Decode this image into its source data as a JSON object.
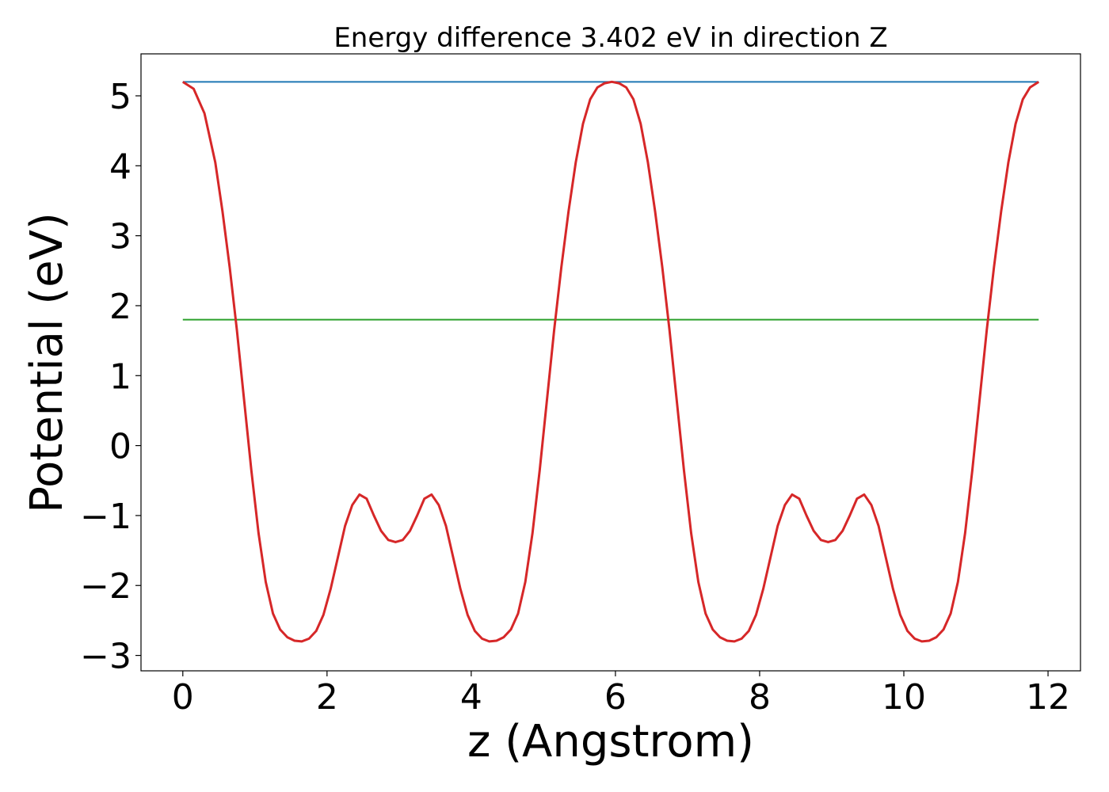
{
  "chart_data": {
    "type": "line",
    "title": "Energy difference 3.402 eV in direction Z",
    "xlabel": "z (Angstrom)",
    "ylabel": "Potential (eV)",
    "xlim": [
      -0.58,
      12.45
    ],
    "ylim": [
      -3.22,
      5.6
    ],
    "xticks": [
      0,
      2,
      4,
      6,
      8,
      10,
      12
    ],
    "yticks": [
      -3,
      -2,
      -1,
      0,
      1,
      2,
      3,
      4,
      5
    ],
    "xtick_labels": [
      "0",
      "2",
      "4",
      "6",
      "8",
      "10",
      "12"
    ],
    "ytick_labels": [
      "−3",
      "−2",
      "−1",
      "0",
      "1",
      "2",
      "3",
      "4",
      "5"
    ],
    "grid": false,
    "legend": "none",
    "series": [
      {
        "color": "#d62728",
        "x": [
          0.0,
          0.15,
          0.3,
          0.45,
          0.55,
          0.65,
          0.75,
          0.85,
          0.95,
          1.05,
          1.15,
          1.25,
          1.35,
          1.45,
          1.55,
          1.65,
          1.75,
          1.85,
          1.95,
          2.05,
          2.15,
          2.25,
          2.35,
          2.45,
          2.55,
          2.65,
          2.75,
          2.85,
          2.95,
          3.05,
          3.15,
          3.25,
          3.35,
          3.45,
          3.55,
          3.65,
          3.75,
          3.85,
          3.95,
          4.05,
          4.15,
          4.25,
          4.35,
          4.45,
          4.55,
          4.65,
          4.75,
          4.85,
          4.95,
          5.05,
          5.15,
          5.25,
          5.35,
          5.45,
          5.55,
          5.65,
          5.75,
          5.85,
          5.95,
          6.05,
          6.15,
          6.25,
          6.35,
          6.45,
          6.55,
          6.65,
          6.75,
          6.85,
          6.95,
          7.05,
          7.15,
          7.25,
          7.35,
          7.45,
          7.55,
          7.65,
          7.75,
          7.85,
          7.95,
          8.05,
          8.15,
          8.25,
          8.35,
          8.45,
          8.55,
          8.65,
          8.75,
          8.85,
          8.95,
          9.05,
          9.15,
          9.25,
          9.35,
          9.45,
          9.55,
          9.65,
          9.75,
          9.85,
          9.95,
          10.05,
          10.15,
          10.25,
          10.35,
          10.45,
          10.55,
          10.65,
          10.75,
          10.85,
          10.95,
          11.05,
          11.15,
          11.25,
          11.35,
          11.45,
          11.55,
          11.65,
          11.75,
          11.87
        ],
        "y": [
          5.2,
          5.1,
          4.75,
          4.05,
          3.35,
          2.55,
          1.65,
          0.65,
          -0.35,
          -1.25,
          -1.95,
          -2.4,
          -2.63,
          -2.74,
          -2.79,
          -2.8,
          -2.76,
          -2.65,
          -2.42,
          -2.05,
          -1.6,
          -1.15,
          -0.85,
          -0.7,
          -0.76,
          -1.0,
          -1.22,
          -1.35,
          -1.38,
          -1.35,
          -1.22,
          -1.0,
          -0.76,
          -0.7,
          -0.85,
          -1.15,
          -1.6,
          -2.05,
          -2.42,
          -2.65,
          -2.76,
          -2.8,
          -2.79,
          -2.74,
          -2.63,
          -2.4,
          -1.95,
          -1.25,
          -0.35,
          0.65,
          1.65,
          2.55,
          3.35,
          4.05,
          4.6,
          4.95,
          5.12,
          5.18,
          5.2,
          5.18,
          5.12,
          4.95,
          4.6,
          4.05,
          3.35,
          2.55,
          1.65,
          0.65,
          -0.35,
          -1.25,
          -1.95,
          -2.4,
          -2.63,
          -2.74,
          -2.79,
          -2.8,
          -2.76,
          -2.65,
          -2.42,
          -2.05,
          -1.6,
          -1.15,
          -0.85,
          -0.7,
          -0.76,
          -1.0,
          -1.22,
          -1.35,
          -1.38,
          -1.35,
          -1.22,
          -1.0,
          -0.76,
          -0.7,
          -0.85,
          -1.15,
          -1.6,
          -2.05,
          -2.42,
          -2.65,
          -2.76,
          -2.8,
          -2.79,
          -2.74,
          -2.63,
          -2.4,
          -1.95,
          -1.25,
          -0.35,
          0.65,
          1.65,
          2.55,
          3.35,
          4.05,
          4.6,
          4.95,
          5.12,
          5.2
        ]
      },
      {
        "color": "#1f77b4",
        "x": [
          0.0,
          11.87
        ],
        "y": [
          5.2,
          5.2
        ]
      },
      {
        "color": "#2ca02c",
        "x": [
          0.0,
          11.87
        ],
        "y": [
          1.8,
          1.8
        ]
      }
    ]
  }
}
